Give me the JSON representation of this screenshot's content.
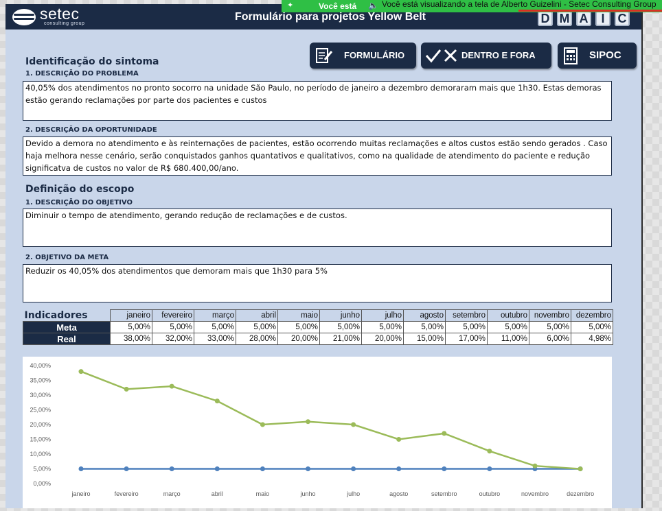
{
  "banner": {
    "left_label": "Você está",
    "message": "Você está visualizando a tela de Alberto Guizelini - Setec Consulting Group"
  },
  "header": {
    "logo_text": "setec",
    "logo_subtext": "consulting group",
    "title": "Formulário para projetos Yellow Belt",
    "dmaic": [
      "D",
      "M",
      "A",
      "I",
      "C"
    ]
  },
  "nav": {
    "formulario": "FORMULÁRIO",
    "dentro_fora": "DENTRO E FORA",
    "sipoc": "SIPOC"
  },
  "sintoma": {
    "title": "Identificação do sintoma",
    "problema_label": "1. DESCRIÇÃO DO PROBLEMA",
    "problema_text": "40,05% dos atendimentos no pronto socorro na unidade São Paulo, no período de janeiro a  dezembro demoraram mais que 1h30.  Estas demoras estão gerando reclamações por parte dos pacientes e custos",
    "oportunidade_label": "2. DESCRIÇÃO DA OPORTUNIDADE",
    "oportunidade_text": "Devido a demora no atendimento e às reinternações de pacientes, estão ocorrendo muitas reclamações e altos custos estão sendo gerados . Caso haja melhora nesse cenário, serão conquistados ganhos quantativos e qualitativos, como na qualidade de atendimento do paciente e redução significatva de custos no valor de R$ 680.400,00/ano."
  },
  "escopo": {
    "title": "Definição do escopo",
    "objetivo_label": "1. DESCRIÇÃO DO OBJETIVO",
    "objetivo_text": "Diminuir o tempo de atendimento, gerando redução de reclamações e de custos.",
    "meta_label": "2. OBJETIVO DA META",
    "meta_text": "Reduzir os 40,05% dos atendimentos que demoram mais que 1h30 para 5%"
  },
  "indicadores": {
    "title": "Indicadores",
    "months": [
      "janeiro",
      "fevereiro",
      "março",
      "abril",
      "maio",
      "junho",
      "julho",
      "agosto",
      "setembro",
      "outubro",
      "novembro",
      "dezembro"
    ],
    "rows": [
      {
        "label": "Meta",
        "values": [
          "5,00%",
          "5,00%",
          "5,00%",
          "5,00%",
          "5,00%",
          "5,00%",
          "5,00%",
          "5,00%",
          "5,00%",
          "5,00%",
          "5,00%",
          "5,00%"
        ]
      },
      {
        "label": "Real",
        "values": [
          "38,00%",
          "32,00%",
          "33,00%",
          "28,00%",
          "20,00%",
          "21,00%",
          "20,00%",
          "15,00%",
          "17,00%",
          "11,00%",
          "6,00%",
          "4,98%"
        ]
      }
    ]
  },
  "chart_data": {
    "type": "line",
    "categories": [
      "janeiro",
      "fevereiro",
      "março",
      "abril",
      "maio",
      "junho",
      "julho",
      "agosto",
      "setembro",
      "outubro",
      "novembro",
      "dezembro"
    ],
    "series": [
      {
        "name": "Meta",
        "color": "#4f81bd",
        "values": [
          5,
          5,
          5,
          5,
          5,
          5,
          5,
          5,
          5,
          5,
          5,
          5
        ]
      },
      {
        "name": "Real",
        "color": "#9bbb59",
        "values": [
          38,
          32,
          33,
          28,
          20,
          21,
          20,
          15,
          17,
          11,
          6,
          4.98
        ]
      }
    ],
    "yticks": [
      "0,00%",
      "5,00%",
      "10,00%",
      "15,00%",
      "20,00%",
      "25,00%",
      "30,00%",
      "35,00%",
      "40,00%"
    ],
    "ylim": [
      0,
      40
    ],
    "grid": false,
    "legend": "none",
    "title": "",
    "xlabel": "",
    "ylabel": ""
  }
}
